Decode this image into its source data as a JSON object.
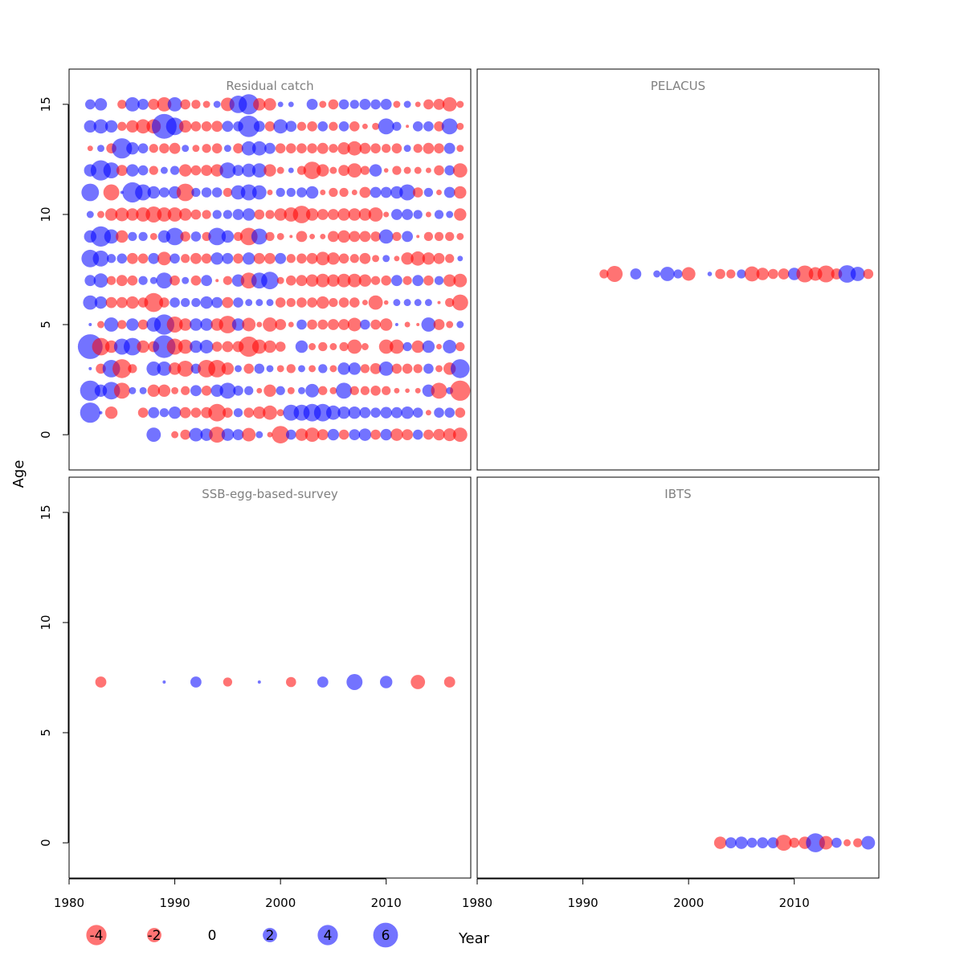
{
  "figure": {
    "y_axis_label": "Age",
    "x_axis_label": "Year"
  },
  "colors": {
    "negative": "#ff0000",
    "positive": "#0000ff",
    "bubble_opacity": 0.55,
    "panel_title": "#808080",
    "frame": "#000000"
  },
  "legend": {
    "items": [
      {
        "label": "-4",
        "value": -4
      },
      {
        "label": "-2",
        "value": -2
      },
      {
        "label": "0",
        "value": 0
      },
      {
        "label": "2",
        "value": 2
      },
      {
        "label": "4",
        "value": 4
      },
      {
        "label": "6",
        "value": 6
      }
    ]
  },
  "axes": {
    "x_ticks": [
      1980,
      1990,
      2000,
      2010
    ],
    "y_ticks": [
      0,
      5,
      10,
      15
    ],
    "xlim": [
      1980,
      2018
    ],
    "ylim": [
      -1.6,
      16.6
    ]
  },
  "chart_data": [
    {
      "type": "scatter",
      "title": "Residual catch",
      "xlabel": "Year",
      "ylabel": "Age",
      "ages": [
        0,
        1,
        2,
        3,
        4,
        5,
        6,
        7,
        8,
        9,
        10,
        11,
        12,
        13,
        14,
        15
      ],
      "year_range": [
        1982,
        2017
      ],
      "residuals_by_age": {
        "0": [
          null,
          null,
          null,
          null,
          null,
          null,
          2.0,
          null,
          -0.5,
          -1.0,
          1.8,
          1.5,
          -2.5,
          1.5,
          1.2,
          -1.8,
          0.5,
          -0.3,
          -3.0,
          1.0,
          -1.5,
          -2.0,
          -1.2,
          1.3,
          -1.0,
          1.2,
          1.5,
          -1.0,
          1.3,
          -1.5,
          -1.2,
          1.0,
          -1.0,
          -1.3,
          -1.6,
          -2.0
        ],
        "1": [
          4.0,
          0.1,
          -1.5,
          null,
          null,
          -1.0,
          1.2,
          0.8,
          1.5,
          -1.2,
          -1.0,
          -1.2,
          -3.0,
          -1.0,
          0.8,
          -1.0,
          -1.5,
          -2.0,
          -0.5,
          2.5,
          2.5,
          3.0,
          3.0,
          2.0,
          1.5,
          1.5,
          1.2,
          1.0,
          1.3,
          1.2,
          1.5,
          1.0,
          -0.3,
          1.0,
          1.0,
          -1.0
        ],
        "2": [
          4.0,
          1.5,
          3.0,
          -2.5,
          0.5,
          0.5,
          -1.5,
          -1.5,
          -0.5,
          -0.8,
          1.2,
          -1.0,
          1.5,
          2.5,
          1.0,
          0.8,
          -0.3,
          -1.5,
          0.8,
          -0.5,
          0.5,
          1.8,
          -0.8,
          -0.5,
          2.5,
          -0.8,
          -0.8,
          -1.0,
          -0.8,
          -0.3,
          -0.2,
          -0.3,
          1.5,
          -2.5,
          0.5,
          -4.0
        ],
        "3": [
          0.1,
          -1.0,
          3.0,
          -3.5,
          -0.8,
          null,
          2.0,
          2.0,
          -1.5,
          -2.5,
          1.0,
          -3.0,
          -3.0,
          -1.5,
          0.5,
          -1.0,
          1.0,
          0.5,
          -0.5,
          -0.8,
          0.5,
          -0.5,
          0.8,
          -0.5,
          1.5,
          1.5,
          -0.8,
          -1.2,
          2.0,
          -1.0,
          -1.0,
          -0.8,
          1.0,
          -0.5,
          -1.5,
          3.5
        ],
        "4": [
          6.0,
          -3.0,
          -1.5,
          2.5,
          3.0,
          -1.5,
          -1.2,
          5.0,
          -2.5,
          -2.0,
          1.5,
          1.8,
          -1.0,
          -1.2,
          -1.2,
          -4.0,
          -2.0,
          -1.5,
          -1.0,
          null,
          1.5,
          -0.5,
          -0.8,
          -0.5,
          -0.8,
          -2.0,
          -0.5,
          null,
          -2.0,
          -2.0,
          0.8,
          -1.5,
          1.5,
          -0.3,
          1.8,
          -0.8
        ],
        "5": [
          0.1,
          -0.5,
          2.0,
          -0.8,
          1.5,
          -1.0,
          2.0,
          4.0,
          -2.5,
          -1.5,
          1.5,
          1.5,
          -1.5,
          -3.0,
          1.5,
          -1.8,
          -0.3,
          -2.0,
          -1.2,
          -0.3,
          1.0,
          -1.0,
          -1.0,
          -1.2,
          -1.2,
          -1.8,
          1.0,
          -1.0,
          -1.5,
          0.1,
          -0.3,
          -0.1,
          2.0,
          -1.2,
          -0.5,
          0.5
        ],
        "6": [
          2.0,
          1.5,
          -1.2,
          -1.2,
          -1.5,
          -1.0,
          -3.5,
          -1.0,
          1.0,
          0.8,
          0.8,
          1.5,
          1.2,
          -1.2,
          1.0,
          0.5,
          0.5,
          0.5,
          -1.0,
          -0.8,
          -1.0,
          -1.0,
          -1.5,
          -0.8,
          -1.0,
          -1.0,
          -0.3,
          -2.0,
          -0.2,
          0.5,
          0.5,
          0.5,
          0.5,
          -0.1,
          -0.8,
          -2.5
        ],
        "7": [
          1.2,
          2.0,
          -0.8,
          -1.2,
          -1.0,
          0.8,
          0.5,
          2.5,
          -1.0,
          0.5,
          -1.0,
          1.2,
          -0.1,
          -0.8,
          1.5,
          -2.5,
          2.5,
          3.0,
          -0.5,
          -1.0,
          -1.2,
          -1.5,
          -1.8,
          -1.5,
          -1.8,
          -1.8,
          -1.5,
          -0.8,
          -1.0,
          1.2,
          -0.8,
          1.2,
          -1.0,
          0.8,
          -1.5,
          -1.8
        ],
        "8": [
          3.0,
          2.5,
          0.8,
          1.0,
          -1.2,
          -1.0,
          1.2,
          -1.8,
          1.0,
          -0.8,
          -1.2,
          -1.0,
          1.5,
          1.2,
          -1.0,
          1.5,
          -1.2,
          -1.2,
          1.2,
          -0.8,
          -1.0,
          -1.2,
          -1.8,
          -1.5,
          -1.0,
          -0.8,
          -1.2,
          -0.5,
          0.5,
          -0.3,
          -1.5,
          -2.0,
          -1.5,
          -1.2,
          -0.8,
          0.3
        ],
        "9": [
          1.5,
          4.0,
          2.0,
          -1.5,
          0.8,
          0.8,
          -0.5,
          1.5,
          3.0,
          -1.0,
          1.0,
          -0.8,
          3.0,
          1.5,
          -0.8,
          -3.0,
          2.5,
          -0.8,
          -0.5,
          -0.1,
          -1.2,
          -0.3,
          -0.3,
          -1.2,
          -1.5,
          -1.2,
          -1.2,
          -1.0,
          2.0,
          -0.8,
          1.2,
          -0.1,
          -0.8,
          -0.8,
          -0.8,
          -0.5
        ],
        "10": [
          0.5,
          -0.5,
          -1.5,
          -1.8,
          -1.5,
          -2.0,
          -2.5,
          -2.0,
          -2.0,
          -1.5,
          -1.0,
          -0.8,
          0.8,
          0.8,
          1.2,
          1.5,
          -1.0,
          -0.8,
          -1.5,
          -2.0,
          -3.0,
          -1.5,
          -1.2,
          -1.2,
          -1.5,
          -1.5,
          -1.5,
          -2.0,
          -0.3,
          1.2,
          1.2,
          0.8,
          -0.3,
          0.8,
          0.5,
          -1.5
        ],
        "11": [
          3.0,
          null,
          -2.5,
          0.1,
          4.0,
          2.5,
          1.5,
          1.0,
          1.5,
          -3.0,
          0.8,
          1.0,
          1.0,
          -0.8,
          2.0,
          2.5,
          2.0,
          -0.3,
          0.8,
          0.8,
          1.0,
          1.5,
          -0.3,
          -0.8,
          -0.8,
          -0.3,
          -1.2,
          1.2,
          1.2,
          1.5,
          2.5,
          -1.0,
          0.8,
          -0.3,
          1.2,
          -1.5
        ],
        "12": [
          1.5,
          4.0,
          2.5,
          -1.2,
          1.5,
          1.0,
          -0.8,
          0.5,
          0.8,
          -1.5,
          -1.0,
          -1.2,
          -1.5,
          2.5,
          1.2,
          1.8,
          2.0,
          -1.5,
          -0.5,
          0.3,
          -0.8,
          -3.0,
          -1.5,
          -0.5,
          -1.2,
          -2.0,
          -0.8,
          1.5,
          -0.2,
          -0.8,
          -0.5,
          -0.5,
          -0.3,
          -1.0,
          1.0,
          -2.0
        ],
        "13": [
          -0.3,
          0.5,
          -1.0,
          4.0,
          1.5,
          1.0,
          -0.8,
          -1.0,
          -1.2,
          0.5,
          -0.5,
          -0.8,
          -1.0,
          0.5,
          -1.0,
          2.0,
          2.0,
          1.2,
          -1.0,
          -1.0,
          -1.0,
          -1.0,
          -1.2,
          -0.8,
          -1.5,
          -2.0,
          -1.2,
          -1.0,
          -0.8,
          -1.0,
          0.5,
          -0.8,
          -1.2,
          -1.0,
          1.2,
          -0.5
        ],
        "14": [
          1.5,
          2.0,
          1.5,
          -0.8,
          -1.5,
          -2.0,
          -2.0,
          6.0,
          3.0,
          -1.5,
          -1.0,
          -1.0,
          -1.2,
          1.2,
          1.0,
          4.5,
          1.2,
          -1.0,
          2.0,
          1.2,
          -0.8,
          -1.0,
          1.0,
          -0.8,
          1.0,
          -1.0,
          -0.3,
          -0.5,
          2.5,
          0.8,
          -0.1,
          1.0,
          1.0,
          -1.0,
          2.5,
          -0.5
        ],
        "15": [
          1.0,
          1.5,
          null,
          -0.8,
          2.0,
          1.2,
          -1.2,
          -2.0,
          2.0,
          -1.0,
          -0.8,
          -0.5,
          0.5,
          -1.8,
          3.0,
          4.0,
          -1.5,
          -1.5,
          0.3,
          0.3,
          null,
          1.2,
          -0.5,
          -1.0,
          1.0,
          0.8,
          1.2,
          1.0,
          1.2,
          -0.5,
          0.5,
          -0.3,
          -1.0,
          -1.2,
          -2.0,
          -0.5
        ]
      }
    },
    {
      "type": "scatter",
      "title": "PELACUS",
      "xlabel": "Year",
      "ylabel": "Age",
      "age": 7.3,
      "points": [
        {
          "year": 1992,
          "value": -0.8
        },
        {
          "year": 1993,
          "value": -2.5
        },
        {
          "year": 1995,
          "value": 1.2
        },
        {
          "year": 1997,
          "value": 0.5
        },
        {
          "year": 1998,
          "value": 2.0
        },
        {
          "year": 1999,
          "value": 0.8
        },
        {
          "year": 2000,
          "value": -1.8
        },
        {
          "year": 2002,
          "value": 0.2
        },
        {
          "year": 2003,
          "value": -1.0
        },
        {
          "year": 2004,
          "value": -0.8
        },
        {
          "year": 2005,
          "value": 0.8
        },
        {
          "year": 2006,
          "value": -2.2
        },
        {
          "year": 2007,
          "value": -1.5
        },
        {
          "year": 2008,
          "value": -1.0
        },
        {
          "year": 2009,
          "value": -1.2
        },
        {
          "year": 2010,
          "value": 1.5
        },
        {
          "year": 2011,
          "value": -2.8
        },
        {
          "year": 2012,
          "value": -1.8
        },
        {
          "year": 2013,
          "value": -2.8
        },
        {
          "year": 2014,
          "value": -1.2
        },
        {
          "year": 2015,
          "value": 3.0
        },
        {
          "year": 2016,
          "value": 2.0
        },
        {
          "year": 2017,
          "value": -1.0
        }
      ]
    },
    {
      "type": "scatter",
      "title": "SSB-egg-based-survey",
      "xlabel": "Year",
      "ylabel": "Age",
      "age": 7.3,
      "points": [
        {
          "year": 1983,
          "value": -1.2
        },
        {
          "year": 1989,
          "value": 0.1
        },
        {
          "year": 1992,
          "value": 1.2
        },
        {
          "year": 1995,
          "value": -0.8
        },
        {
          "year": 1998,
          "value": 0.1
        },
        {
          "year": 2001,
          "value": -1.0
        },
        {
          "year": 2004,
          "value": 1.2
        },
        {
          "year": 2007,
          "value": 2.5
        },
        {
          "year": 2010,
          "value": 1.5
        },
        {
          "year": 2013,
          "value": -2.0
        },
        {
          "year": 2016,
          "value": -1.2
        }
      ]
    },
    {
      "type": "scatter",
      "title": "IBTS",
      "xlabel": "Year",
      "ylabel": "Age",
      "age": 0,
      "points": [
        {
          "year": 2003,
          "value": -1.5
        },
        {
          "year": 2004,
          "value": 1.2
        },
        {
          "year": 2005,
          "value": 1.5
        },
        {
          "year": 2006,
          "value": 1.0
        },
        {
          "year": 2007,
          "value": 1.2
        },
        {
          "year": 2008,
          "value": 1.2
        },
        {
          "year": 2009,
          "value": -2.5
        },
        {
          "year": 2010,
          "value": -1.0
        },
        {
          "year": 2011,
          "value": -1.5
        },
        {
          "year": 2012,
          "value": 3.5
        },
        {
          "year": 2013,
          "value": -1.8
        },
        {
          "year": 2014,
          "value": 1.0
        },
        {
          "year": 2015,
          "value": -0.5
        },
        {
          "year": 2016,
          "value": -0.8
        },
        {
          "year": 2017,
          "value": 1.8
        }
      ]
    }
  ]
}
